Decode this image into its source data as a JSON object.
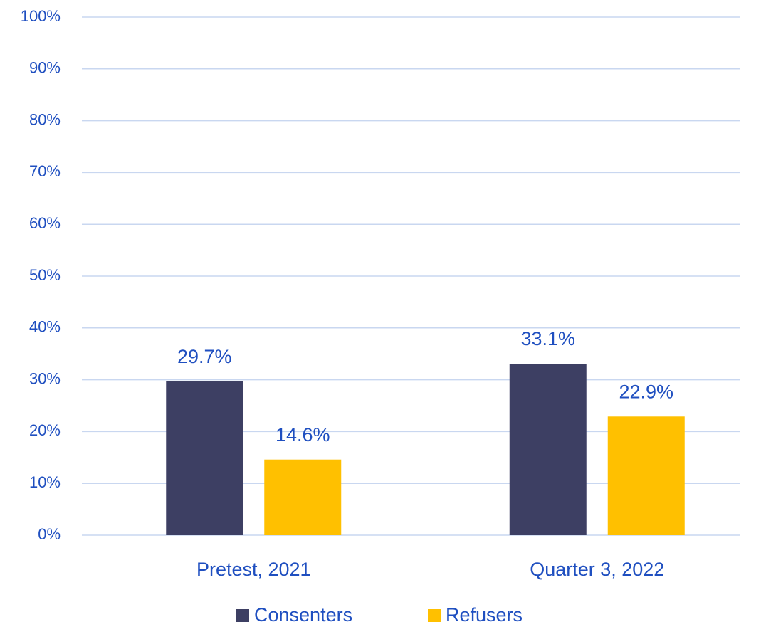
{
  "chart_data": {
    "type": "bar",
    "categories": [
      "Pretest, 2021",
      "Quarter 3, 2022"
    ],
    "series": [
      {
        "name": "Consenters",
        "color": "#3d3f63",
        "values": [
          29.7,
          33.1
        ],
        "value_labels": [
          "29.7%",
          "33.1%"
        ]
      },
      {
        "name": "Refusers",
        "color": "#ffc000",
        "values": [
          14.6,
          22.9
        ],
        "value_labels": [
          "14.6%",
          "22.9%"
        ]
      }
    ],
    "ylim": [
      0,
      100
    ],
    "yticks": [
      {
        "value": 0,
        "label": "0%"
      },
      {
        "value": 10,
        "label": "10%"
      },
      {
        "value": 20,
        "label": "20%"
      },
      {
        "value": 30,
        "label": "30%"
      },
      {
        "value": 40,
        "label": "40%"
      },
      {
        "value": 50,
        "label": "50%"
      },
      {
        "value": 60,
        "label": "60%"
      },
      {
        "value": 70,
        "label": "70%"
      },
      {
        "value": 80,
        "label": "80%"
      },
      {
        "value": 90,
        "label": "90%"
      },
      {
        "value": 100,
        "label": "100%"
      }
    ],
    "grid": true,
    "legend": "bottom"
  }
}
